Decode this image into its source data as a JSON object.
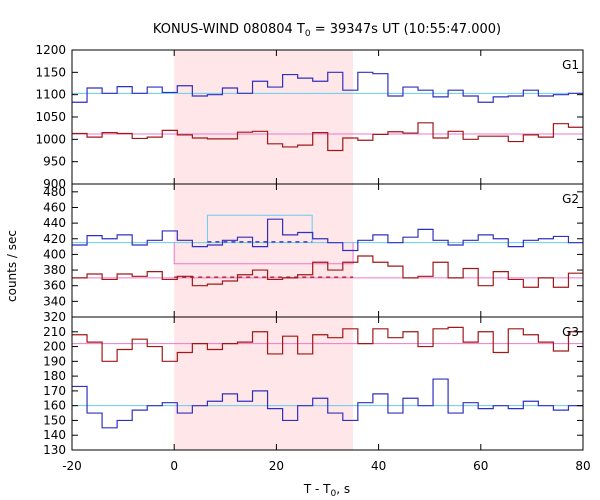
{
  "chart_data": {
    "type": "line",
    "title": "KONUS-WIND 080804 T",
    "title_sub": "0",
    "title_rest": " = 39347s UT (10:55:47.000)",
    "xlabel": "T - T",
    "xlabel_sub": "0",
    "xlabel_rest": ", s",
    "ylabel": "counts / sec",
    "xlim": [
      -20,
      80
    ],
    "x_ticks": [
      -20,
      0,
      20,
      40,
      60,
      80
    ],
    "highlight_interval": [
      0,
      35
    ],
    "highlight_color": "#ffe6e8",
    "bin_width": 2.944,
    "bin_start": -20,
    "grid": false,
    "panels": [
      {
        "label": "G1",
        "ylim": [
          900,
          1200
        ],
        "y_ticks": [
          900,
          950,
          1000,
          1050,
          1100,
          1150,
          1200
        ],
        "series": [
          {
            "color": "#3030c0",
            "values": [
              1083,
              1115,
              1103,
              1118,
              1103,
              1117,
              1105,
              1120,
              1097,
              1100,
              1115,
              1103,
              1130,
              1117,
              1145,
              1137,
              1130,
              1150,
              1110,
              1150,
              1147,
              1097,
              1117,
              1110,
              1095,
              1110,
              1097,
              1083,
              1095,
              1097,
              1110,
              1097,
              1100,
              1103,
              1125,
              1100,
              1083,
              1085,
              1097,
              1100,
              1110,
              1095,
              1103,
              1100,
              1107,
              1125,
              1113,
              1130,
              1103,
              1100,
              1103
            ]
          },
          {
            "color": "#a01818",
            "values": [
              1013,
              1005,
              1015,
              1013,
              1002,
              1005,
              1020,
              1010,
              1003,
              1001,
              1001,
              1016,
              1018,
              990,
              983,
              987,
              1015,
              975,
              1003,
              998,
              1011,
              1017,
              1014,
              1037,
              1003,
              1018,
              1000,
              1007,
              1007,
              995,
              1010,
              1005,
              1035,
              1027,
              1007,
              1015,
              1013,
              1025,
              1003,
              998,
              1005,
              1003,
              1008,
              1000,
              1003,
              1010,
              987,
              1005,
              1000,
              1008,
              1013
            ]
          }
        ],
        "mean_lines": [
          {
            "color": "#66ccee",
            "value": 1103,
            "from": -20,
            "to": 80
          },
          {
            "color": "#ee77cc",
            "value": 1012,
            "from": -20,
            "to": 80
          }
        ]
      },
      {
        "label": "G2",
        "ylim": [
          320,
          490
        ],
        "y_ticks": [
          320,
          340,
          360,
          380,
          400,
          420,
          440,
          460,
          480
        ],
        "series": [
          {
            "color": "#3030c0",
            "values": [
              412,
              424,
              420,
              425,
              412,
              418,
              430,
              418,
              410,
              412,
              418,
              422,
              410,
              445,
              425,
              428,
              420,
              415,
              405,
              418,
              425,
              415,
              422,
              432,
              418,
              412,
              418,
              425,
              420,
              410,
              418,
              420,
              423,
              415,
              420,
              418,
              416,
              421,
              415,
              418,
              417,
              415,
              418,
              420,
              415,
              422,
              418,
              420,
              415,
              420,
              418
            ]
          },
          {
            "color": "#a01818",
            "values": [
              370,
              375,
              368,
              375,
              372,
              378,
              368,
              372,
              360,
              362,
              366,
              374,
              380,
              368,
              370,
              374,
              390,
              380,
              390,
              398,
              390,
              385,
              370,
              372,
              390,
              370,
              382,
              360,
              378,
              368,
              358,
              370,
              358,
              376,
              364,
              374,
              356,
              378,
              368,
              372,
              365,
              380,
              368,
              376,
              362,
              378,
              368,
              376,
              370,
              366,
              372
            ]
          }
        ],
        "mean_lines": [
          {
            "color": "#66ccee",
            "value": 415,
            "from": -20,
            "to": 80
          },
          {
            "color": "#ee77cc",
            "value": 370,
            "from": -20,
            "to": 80
          }
        ],
        "burst_levels": [
          {
            "color": "#66ccee",
            "value": 450,
            "from": 6.5,
            "to": 27
          },
          {
            "color": "#ee77cc",
            "value": 388,
            "from": 0,
            "to": 35
          }
        ],
        "dashed_levels": [
          {
            "color": "#2020b0",
            "value": 416,
            "from": 6.5,
            "to": 27
          },
          {
            "color": "#a01818",
            "value": 371,
            "from": 0,
            "to": 35
          }
        ]
      },
      {
        "label": "G3",
        "ylim": [
          130,
          220
        ],
        "y_ticks": [
          130,
          140,
          150,
          160,
          170,
          180,
          190,
          200,
          210
        ],
        "series": [
          {
            "color": "#a01818",
            "values": [
              208,
              203,
              190,
              198,
              205,
              200,
              190,
              196,
              202,
              198,
              202,
              203,
              210,
              195,
              207,
              195,
              208,
              206,
              212,
              202,
              212,
              206,
              210,
              200,
              212,
              213,
              203,
              210,
              196,
              212,
              208,
              203,
              197,
              210,
              190,
              212,
              203,
              206,
              198,
              212,
              206,
              205,
              197,
              204,
              211,
              198,
              205,
              212,
              202,
              203,
              205
            ]
          },
          {
            "color": "#3030c0",
            "values": [
              173,
              155,
              145,
              150,
              157,
              160,
              162,
              155,
              160,
              163,
              168,
              163,
              170,
              158,
              150,
              160,
              165,
              155,
              150,
              162,
              168,
              155,
              165,
              160,
              178,
              155,
              162,
              158,
              160,
              158,
              163,
              160,
              157,
              160,
              155,
              162,
              158,
              162,
              160,
              163,
              158,
              160,
              162,
              165,
              158,
              162,
              160,
              163,
              148,
              160,
              155
            ]
          }
        ],
        "mean_lines": [
          {
            "color": "#ee77cc",
            "value": 202,
            "from": -20,
            "to": 80
          },
          {
            "color": "#66ccee",
            "value": 160,
            "from": -20,
            "to": 80
          }
        ]
      }
    ]
  }
}
